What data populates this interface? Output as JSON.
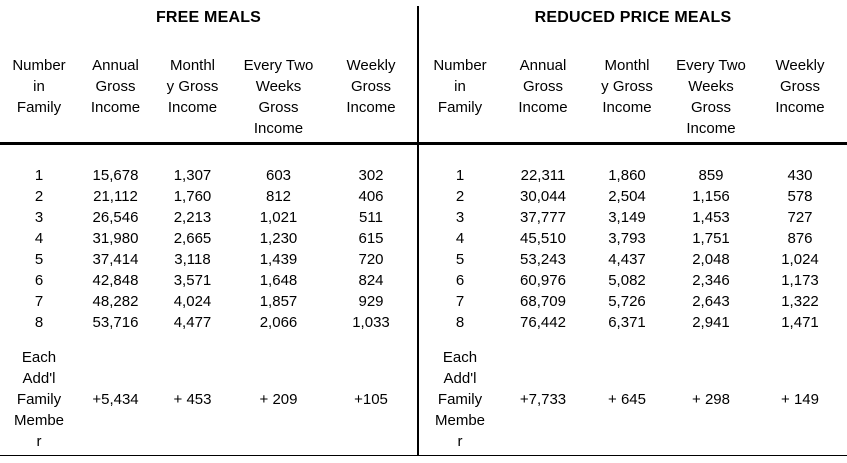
{
  "tables": [
    {
      "title": "FREE MEALS",
      "columns": [
        "Number\nin\nFamily",
        "Annual\nGross\nIncome",
        "Monthl\ny Gross\nIncome",
        "Every Two\nWeeks\nGross\nIncome",
        "Weekly\nGross\nIncome"
      ],
      "rows": [
        [
          "1",
          "15,678",
          "1,307",
          "603",
          "302"
        ],
        [
          "2",
          "21,112",
          "1,760",
          "812",
          "406"
        ],
        [
          "3",
          "26,546",
          "2,213",
          "1,021",
          "511"
        ],
        [
          "4",
          "31,980",
          "2,665",
          "1,230",
          "615"
        ],
        [
          "5",
          "37,414",
          "3,118",
          "1,439",
          "720"
        ],
        [
          "6",
          "42,848",
          "3,571",
          "1,648",
          "824"
        ],
        [
          "7",
          "48,282",
          "4,024",
          "1,857",
          "929"
        ],
        [
          "8",
          "53,716",
          "4,477",
          "2,066",
          "1,033"
        ]
      ],
      "addl_row": {
        "label": "Each\nAdd'l\nFamily\nMembe\nr",
        "values": [
          "+5,434",
          "+ 453",
          "+ 209",
          "+105"
        ]
      }
    },
    {
      "title": "REDUCED PRICE MEALS",
      "columns": [
        "Number\nin\nFamily",
        "Annual\nGross\nIncome",
        "Monthl\ny Gross\nIncome",
        "Every Two\nWeeks\nGross\nIncome",
        "Weekly\nGross\nIncome"
      ],
      "rows": [
        [
          "1",
          "22,311",
          "1,860",
          "859",
          "430"
        ],
        [
          "2",
          "30,044",
          "2,504",
          "1,156",
          "578"
        ],
        [
          "3",
          "37,777",
          "3,149",
          "1,453",
          "727"
        ],
        [
          "4",
          "45,510",
          "3,793",
          "1,751",
          "876"
        ],
        [
          "5",
          "53,243",
          "4,437",
          "2,048",
          "1,024"
        ],
        [
          "6",
          "60,976",
          "5,082",
          "2,346",
          "1,173"
        ],
        [
          "7",
          "68,709",
          "5,726",
          "2,643",
          "1,322"
        ],
        [
          "8",
          "76,442",
          "6,371",
          "2,941",
          "1,471"
        ]
      ],
      "addl_row": {
        "label": "Each\nAdd'l\nFamily\nMembe\nr",
        "values": [
          "+7,733",
          "+ 645",
          "+ 298",
          "+ 149"
        ]
      }
    }
  ]
}
